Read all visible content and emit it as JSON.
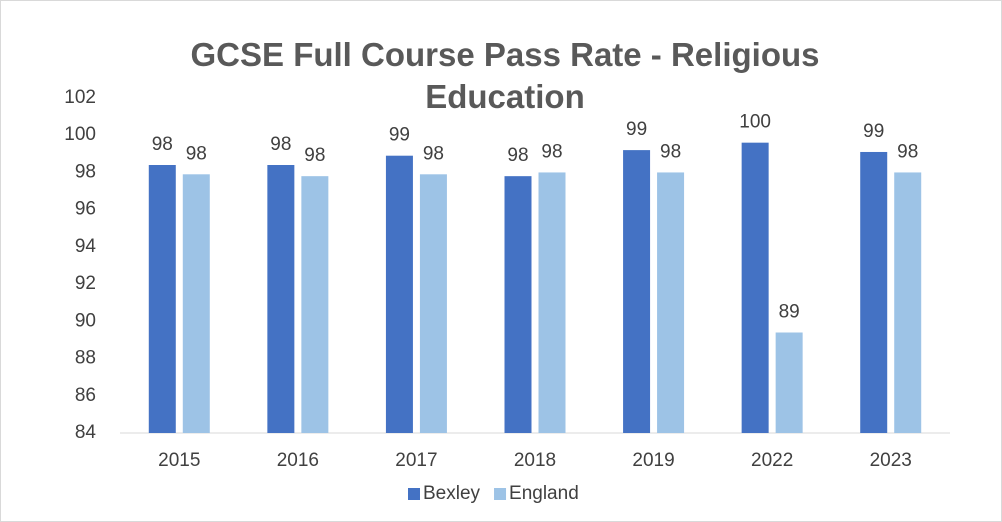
{
  "chart_data": {
    "type": "bar",
    "title": "GCSE Full Course Pass Rate - Religious Education",
    "categories": [
      "2015",
      "2016",
      "2017",
      "2018",
      "2019",
      "2022",
      "2023"
    ],
    "series": [
      {
        "name": "Bexley",
        "color": "#4472c4",
        "values": [
          98.4,
          98.4,
          98.9,
          97.8,
          99.2,
          99.6,
          99.1
        ],
        "value_labels": [
          "98",
          "98",
          "99",
          "98",
          "99",
          "100",
          "99"
        ]
      },
      {
        "name": "England",
        "color": "#9dc3e6",
        "values": [
          97.9,
          97.8,
          97.9,
          98.0,
          98.0,
          89.4,
          98.0
        ],
        "value_labels": [
          "98",
          "98",
          "98",
          "98",
          "98",
          "89",
          "98"
        ]
      }
    ],
    "ylim": [
      84,
      102
    ],
    "yticks": [
      84,
      86,
      88,
      90,
      92,
      94,
      96,
      98,
      100,
      102
    ],
    "grid": false,
    "legend": "bottom"
  }
}
